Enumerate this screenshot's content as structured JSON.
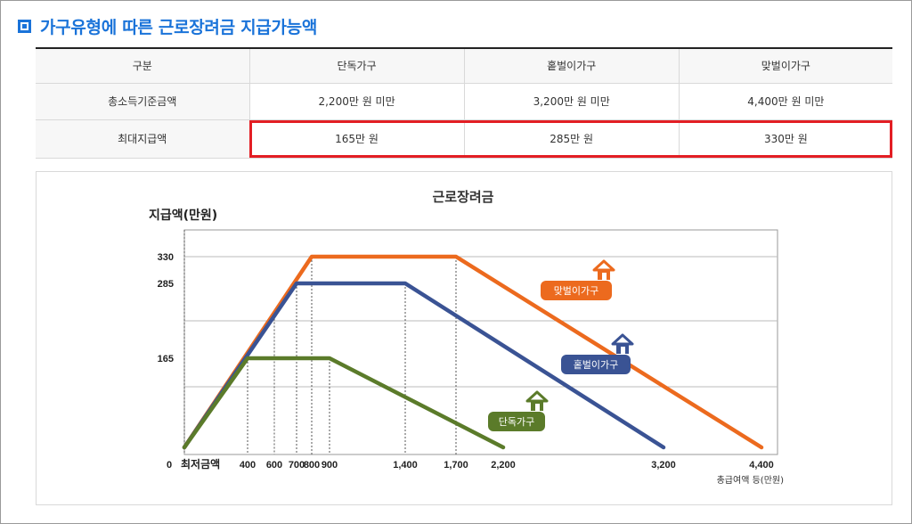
{
  "heading": "가구유형에 따른 근로장려금 지급가능액",
  "table": {
    "header": [
      "구분",
      "단독가구",
      "홑벌이가구",
      "맞벌이가구"
    ],
    "rows": [
      [
        "총소득기준금액",
        "2,200만 원 미만",
        "3,200만 원 미만",
        "4,400만 원 미만"
      ],
      [
        "최대지급액",
        "165만 원",
        "285만 원",
        "330만 원"
      ]
    ]
  },
  "chart_data": {
    "type": "line",
    "title": "근로장려금",
    "ylabel": "지급액(만원)",
    "xlabel": "총급여액 등(만원)",
    "x_origin_label": "0",
    "x_min_label": "최저금액",
    "x_ticks": [
      400,
      600,
      700,
      800,
      900,
      1400,
      1700,
      2200,
      3200,
      4400
    ],
    "x_tick_labels": [
      "400",
      "600",
      "700",
      "800",
      "900",
      "1,400",
      "1,700",
      "2,200",
      "3,200",
      "4,400"
    ],
    "y_ticks": [
      165,
      285,
      330
    ],
    "y_tick_labels": [
      "165",
      "285",
      "330"
    ],
    "grid": true,
    "series": [
      {
        "name": "맞벌이가구",
        "color": "#ec6a1e",
        "points": [
          [
            0,
            0
          ],
          [
            800,
            330
          ],
          [
            1700,
            330
          ],
          [
            4400,
            0
          ]
        ]
      },
      {
        "name": "홑벌이가구",
        "color": "#3a5394",
        "points": [
          [
            0,
            0
          ],
          [
            700,
            285
          ],
          [
            1400,
            285
          ],
          [
            3200,
            0
          ]
        ]
      },
      {
        "name": "단독가구",
        "color": "#5b7b2a",
        "points": [
          [
            0,
            0
          ],
          [
            400,
            165
          ],
          [
            900,
            165
          ],
          [
            2200,
            0
          ]
        ]
      }
    ]
  }
}
